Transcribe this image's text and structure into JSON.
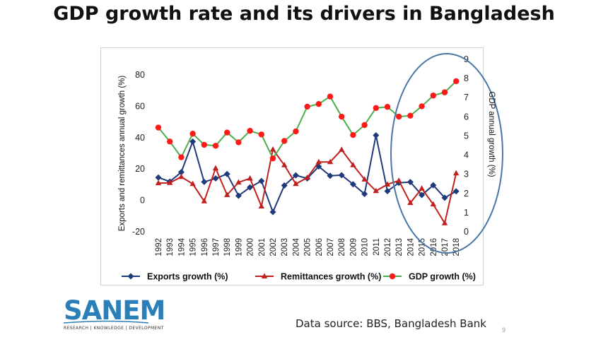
{
  "title": "GDP growth rate and its drivers in Bangladesh",
  "source": "Data source: BBS, Bangladesh Bank",
  "page_number": "9",
  "logo": {
    "name": "SANEM",
    "tagline": "RESEARCH | KNOWLEDGE | DEVELOPMENT"
  },
  "colors": {
    "exports": "#1f3a7a",
    "remittances": "#c0201e",
    "gdp_line": "#4cae4c",
    "gdp_marker": "#ff1a1a",
    "ellipse": "#4a77a8",
    "logo": "#2a7fb8"
  },
  "chart_data": {
    "type": "line",
    "x": [
      "1992",
      "1993",
      "1994",
      "1995",
      "1996",
      "1997",
      "1998",
      "1999",
      "2000",
      "2001",
      "2002",
      "2003",
      "2004",
      "2005",
      "2006",
      "2007",
      "2008",
      "2009",
      "2010",
      "2011",
      "2012",
      "2013",
      "2014",
      "2015",
      "2016",
      "2017",
      "2018"
    ],
    "left_axis": {
      "label": "Exports and remittances annual growth (%)",
      "ylim": [
        -20,
        80
      ],
      "ticks": [
        -20,
        0,
        20,
        40,
        60,
        80
      ]
    },
    "right_axis": {
      "label": "GDP annual growth (%)",
      "ylim": [
        0,
        9
      ],
      "ticks": [
        0,
        1,
        2,
        3,
        4,
        5,
        6,
        7,
        8,
        9
      ]
    },
    "series": [
      {
        "name": "Exports growth (%)",
        "axis": "left",
        "marker": "diamond",
        "values": [
          14.6,
          12.0,
          18.0,
          37.5,
          11.8,
          14.0,
          16.8,
          3.0,
          8.3,
          12.4,
          -7.4,
          9.5,
          16.0,
          14.0,
          21.6,
          15.7,
          16.1,
          10.3,
          4.1,
          41.5,
          5.9,
          11.2,
          11.7,
          3.4,
          9.7,
          1.7,
          5.8
        ]
      },
      {
        "name": "Remittances growth (%)",
        "axis": "left",
        "marker": "triangle",
        "values": [
          11.0,
          11.2,
          15.0,
          10.5,
          -0.5,
          20.5,
          3.5,
          11.5,
          14.0,
          -3.8,
          32.5,
          22.5,
          10.5,
          14.5,
          24.5,
          24.5,
          32.3,
          22.5,
          13.4,
          6.0,
          10.2,
          12.6,
          -1.6,
          7.6,
          -2.5,
          -14.5,
          17.3
        ]
      },
      {
        "name": "GDP growth (%)",
        "axis": "right",
        "marker": "circle",
        "values": [
          5.44,
          4.71,
          3.89,
          5.12,
          4.54,
          4.49,
          5.18,
          4.67,
          5.27,
          5.08,
          3.83,
          4.74,
          5.24,
          6.53,
          6.67,
          7.06,
          6.01,
          5.05,
          5.57,
          6.46,
          6.52,
          6.01,
          6.06,
          6.55,
          7.11,
          7.28,
          7.86
        ]
      }
    ]
  }
}
